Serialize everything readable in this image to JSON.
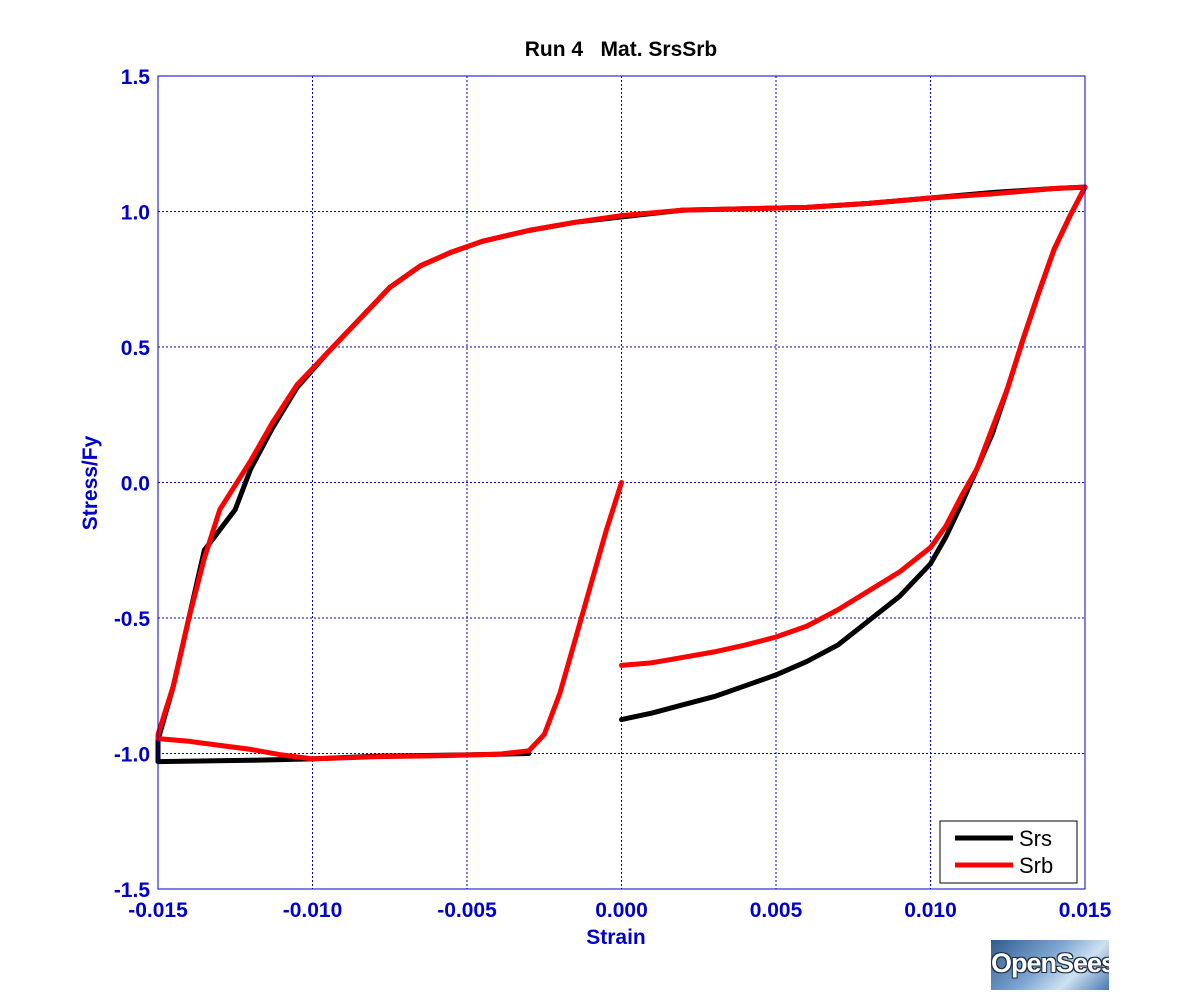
{
  "chart_data": {
    "type": "line",
    "title": "Run 4   Mat. SrsSrb",
    "xlabel": "Strain",
    "ylabel": "Stress/Fy",
    "xlim": [
      -0.015,
      0.015
    ],
    "ylim": [
      -1.5,
      1.5
    ],
    "xticks": [
      -0.015,
      -0.01,
      -0.005,
      0.0,
      0.005,
      0.01,
      0.015
    ],
    "xtick_labels": [
      "-0.015",
      "-0.010",
      "-0.005",
      "0.000",
      "0.005",
      "0.010",
      "0.015"
    ],
    "yticks": [
      1.5,
      1.0,
      0.5,
      0.0,
      -0.5,
      -1.0,
      -1.5
    ],
    "ytick_labels": [
      "1.5",
      "1.0",
      "0.5",
      "0.0",
      "-0.5",
      "-1.0",
      "-1.5"
    ],
    "grid": true,
    "legend_position": "bottom-right",
    "axis_color": "#0000cc",
    "grid_color": "#0000cc",
    "series": [
      {
        "name": "Srs",
        "color": "#000000",
        "segments": [
          [
            [
              -0.003,
              -1.0
            ],
            [
              -0.005,
              -1.005
            ],
            [
              -0.008,
              -1.01
            ],
            [
              -0.01,
              -1.02
            ],
            [
              -0.012,
              -1.025
            ],
            [
              -0.015,
              -1.03
            ],
            [
              -0.015,
              -0.95
            ],
            [
              -0.0145,
              -0.75
            ],
            [
              -0.014,
              -0.5
            ],
            [
              -0.0135,
              -0.25
            ],
            [
              -0.0125,
              -0.1
            ],
            [
              -0.012,
              0.05
            ],
            [
              -0.0113,
              0.2
            ],
            [
              -0.0105,
              0.35
            ],
            [
              -0.0095,
              0.48
            ],
            [
              -0.0085,
              0.6
            ],
            [
              -0.0075,
              0.72
            ],
            [
              -0.0065,
              0.8
            ],
            [
              -0.0055,
              0.85
            ],
            [
              -0.0045,
              0.89
            ],
            [
              -0.003,
              0.93
            ],
            [
              -0.0015,
              0.96
            ],
            [
              0.0,
              0.98
            ],
            [
              0.002,
              1.005
            ],
            [
              0.004,
              1.01
            ],
            [
              0.006,
              1.015
            ],
            [
              0.008,
              1.03
            ],
            [
              0.01,
              1.05
            ],
            [
              0.012,
              1.07
            ],
            [
              0.014,
              1.085
            ],
            [
              0.015,
              1.09
            ]
          ],
          [
            [
              0.0,
              -0.875
            ],
            [
              0.001,
              -0.85
            ],
            [
              0.002,
              -0.82
            ],
            [
              0.003,
              -0.79
            ],
            [
              0.004,
              -0.75
            ],
            [
              0.005,
              -0.71
            ],
            [
              0.006,
              -0.66
            ],
            [
              0.007,
              -0.6
            ],
            [
              0.008,
              -0.51
            ],
            [
              0.009,
              -0.42
            ],
            [
              0.01,
              -0.3
            ],
            [
              0.0105,
              -0.2
            ],
            [
              0.011,
              -0.08
            ],
            [
              0.0115,
              0.05
            ],
            [
              0.012,
              0.18
            ],
            [
              0.0125,
              0.35
            ],
            [
              0.013,
              0.53
            ],
            [
              0.0135,
              0.7
            ],
            [
              0.014,
              0.86
            ],
            [
              0.0145,
              0.98
            ],
            [
              0.015,
              1.09
            ]
          ]
        ]
      },
      {
        "name": "Srb",
        "color": "#ff0000",
        "segments": [
          [
            [
              0.0,
              0.0
            ],
            [
              -0.0005,
              -0.18
            ],
            [
              -0.001,
              -0.38
            ],
            [
              -0.0015,
              -0.58
            ],
            [
              -0.002,
              -0.78
            ],
            [
              -0.0025,
              -0.93
            ],
            [
              -0.003,
              -0.99
            ],
            [
              -0.004,
              -1.003
            ],
            [
              -0.006,
              -1.008
            ],
            [
              -0.008,
              -1.012
            ],
            [
              -0.01,
              -1.02
            ],
            [
              -0.011,
              -1.005
            ],
            [
              -0.012,
              -0.985
            ],
            [
              -0.013,
              -0.97
            ],
            [
              -0.014,
              -0.955
            ],
            [
              -0.015,
              -0.945
            ],
            [
              -0.015,
              -0.93
            ],
            [
              -0.0145,
              -0.75
            ],
            [
              -0.014,
              -0.5
            ],
            [
              -0.0135,
              -0.28
            ],
            [
              -0.013,
              -0.1
            ],
            [
              -0.012,
              0.08
            ],
            [
              -0.0113,
              0.22
            ],
            [
              -0.0105,
              0.36
            ],
            [
              -0.0095,
              0.48
            ],
            [
              -0.0085,
              0.6
            ],
            [
              -0.0075,
              0.72
            ],
            [
              -0.0065,
              0.8
            ],
            [
              -0.0055,
              0.85
            ],
            [
              -0.0045,
              0.89
            ],
            [
              -0.003,
              0.93
            ],
            [
              -0.0015,
              0.96
            ],
            [
              0.0,
              0.985
            ],
            [
              0.002,
              1.005
            ],
            [
              0.004,
              1.01
            ],
            [
              0.006,
              1.015
            ],
            [
              0.008,
              1.03
            ],
            [
              0.01,
              1.05
            ],
            [
              0.012,
              1.065
            ],
            [
              0.014,
              1.085
            ],
            [
              0.015,
              1.09
            ]
          ],
          [
            [
              0.0,
              -0.675
            ],
            [
              0.001,
              -0.665
            ],
            [
              0.002,
              -0.645
            ],
            [
              0.003,
              -0.625
            ],
            [
              0.004,
              -0.6
            ],
            [
              0.005,
              -0.57
            ],
            [
              0.006,
              -0.53
            ],
            [
              0.007,
              -0.47
            ],
            [
              0.008,
              -0.4
            ],
            [
              0.009,
              -0.33
            ],
            [
              0.01,
              -0.24
            ],
            [
              0.0105,
              -0.16
            ],
            [
              0.011,
              -0.05
            ],
            [
              0.0115,
              0.05
            ],
            [
              0.012,
              0.2
            ],
            [
              0.0125,
              0.35
            ],
            [
              0.013,
              0.53
            ],
            [
              0.0135,
              0.7
            ],
            [
              0.014,
              0.86
            ],
            [
              0.0145,
              0.98
            ],
            [
              0.015,
              1.09
            ]
          ]
        ]
      }
    ]
  },
  "logo": {
    "text": "OpenSees"
  }
}
